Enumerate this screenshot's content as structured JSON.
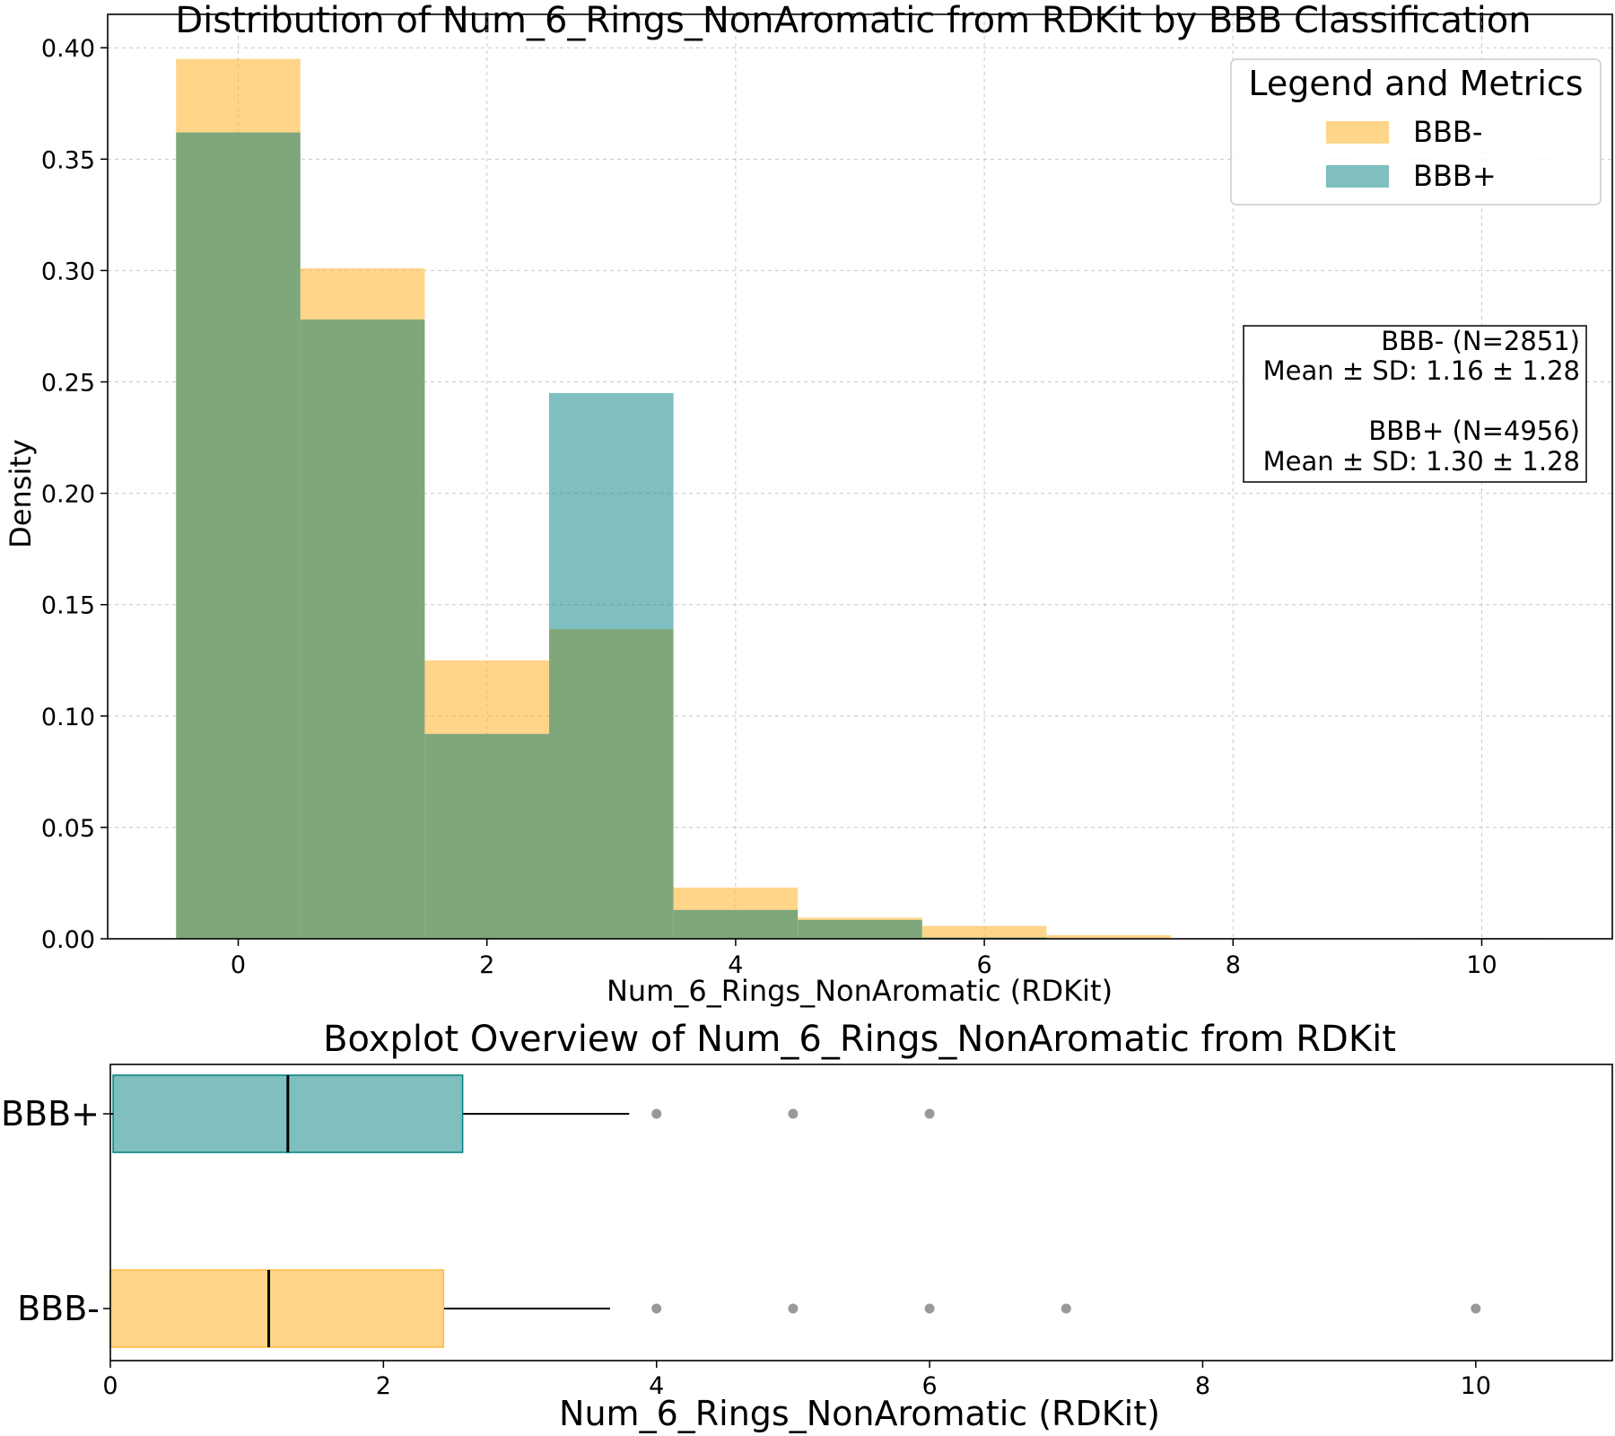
{
  "colors": {
    "bbb_neg": "#fdb93a",
    "bbb_pos": "#008080",
    "overlap": "#7fa77b",
    "outlier": "#808080"
  },
  "chart_data": [
    {
      "type": "bar",
      "title": "Distribution of Num_6_Rings_NonAromatic from RDKit by BBB Classification",
      "xlabel": "Num_6_Rings_NonAromatic (RDKit)",
      "ylabel": "Density",
      "xlim": [
        -1.05,
        11.05
      ],
      "ylim": [
        0,
        0.415
      ],
      "xticks": [
        0,
        2,
        4,
        6,
        8,
        10
      ],
      "yticks": [
        0.0,
        0.05,
        0.1,
        0.15,
        0.2,
        0.25,
        0.3,
        0.35,
        0.4
      ],
      "ytick_labels": [
        "0.00",
        "0.05",
        "0.10",
        "0.15",
        "0.20",
        "0.25",
        "0.30",
        "0.35",
        "0.40"
      ],
      "bins": [
        [
          -0.5,
          0.5
        ],
        [
          0.5,
          1.5
        ],
        [
          1.5,
          2.5
        ],
        [
          2.5,
          3.5
        ],
        [
          3.5,
          4.5
        ],
        [
          4.5,
          5.5
        ],
        [
          5.5,
          6.5
        ],
        [
          6.5,
          7.5
        ],
        [
          7.5,
          8.5
        ],
        [
          8.5,
          9.5
        ],
        [
          9.5,
          10.5
        ]
      ],
      "series": [
        {
          "name": "BBB-",
          "values": [
            0.395,
            0.301,
            0.125,
            0.139,
            0.023,
            0.0095,
            0.0058,
            0.0016,
            0,
            0,
            0.0004
          ]
        },
        {
          "name": "BBB+",
          "values": [
            0.362,
            0.278,
            0.092,
            0.245,
            0.013,
            0.0085,
            0.0006,
            0,
            0,
            0,
            0
          ]
        }
      ],
      "grid": true,
      "legend": {
        "title": "Legend and Metrics",
        "placement": "top-right",
        "entries": [
          "BBB-",
          "BBB+"
        ]
      },
      "annotation": {
        "lines": [
          "BBB- (N=2851)",
          "Mean ± SD: 1.16 ± 1.28",
          "BBB+ (N=4956)",
          "Mean ± SD: 1.30 ± 1.28"
        ]
      }
    },
    {
      "type": "box",
      "title": "Boxplot Overview of Num_6_Rings_NonAromatic from RDKit",
      "xlabel": "Num_6_Rings_NonAromatic (RDKit)",
      "xlim": [
        0,
        11
      ],
      "xticks": [
        0,
        2,
        4,
        6,
        8,
        10
      ],
      "categories": [
        "BBB+",
        "BBB-"
      ],
      "series": [
        {
          "name": "BBB+",
          "q1": 0.02,
          "median": 1.3,
          "q3": 2.58,
          "whisker_low": 0,
          "whisker_high": 3.8,
          "outliers": [
            4,
            5,
            6
          ]
        },
        {
          "name": "BBB-",
          "q1": 0,
          "median": 1.16,
          "q3": 2.44,
          "whisker_low": 0,
          "whisker_high": 3.66,
          "outliers": [
            4,
            5,
            6,
            7,
            10
          ]
        }
      ]
    }
  ]
}
